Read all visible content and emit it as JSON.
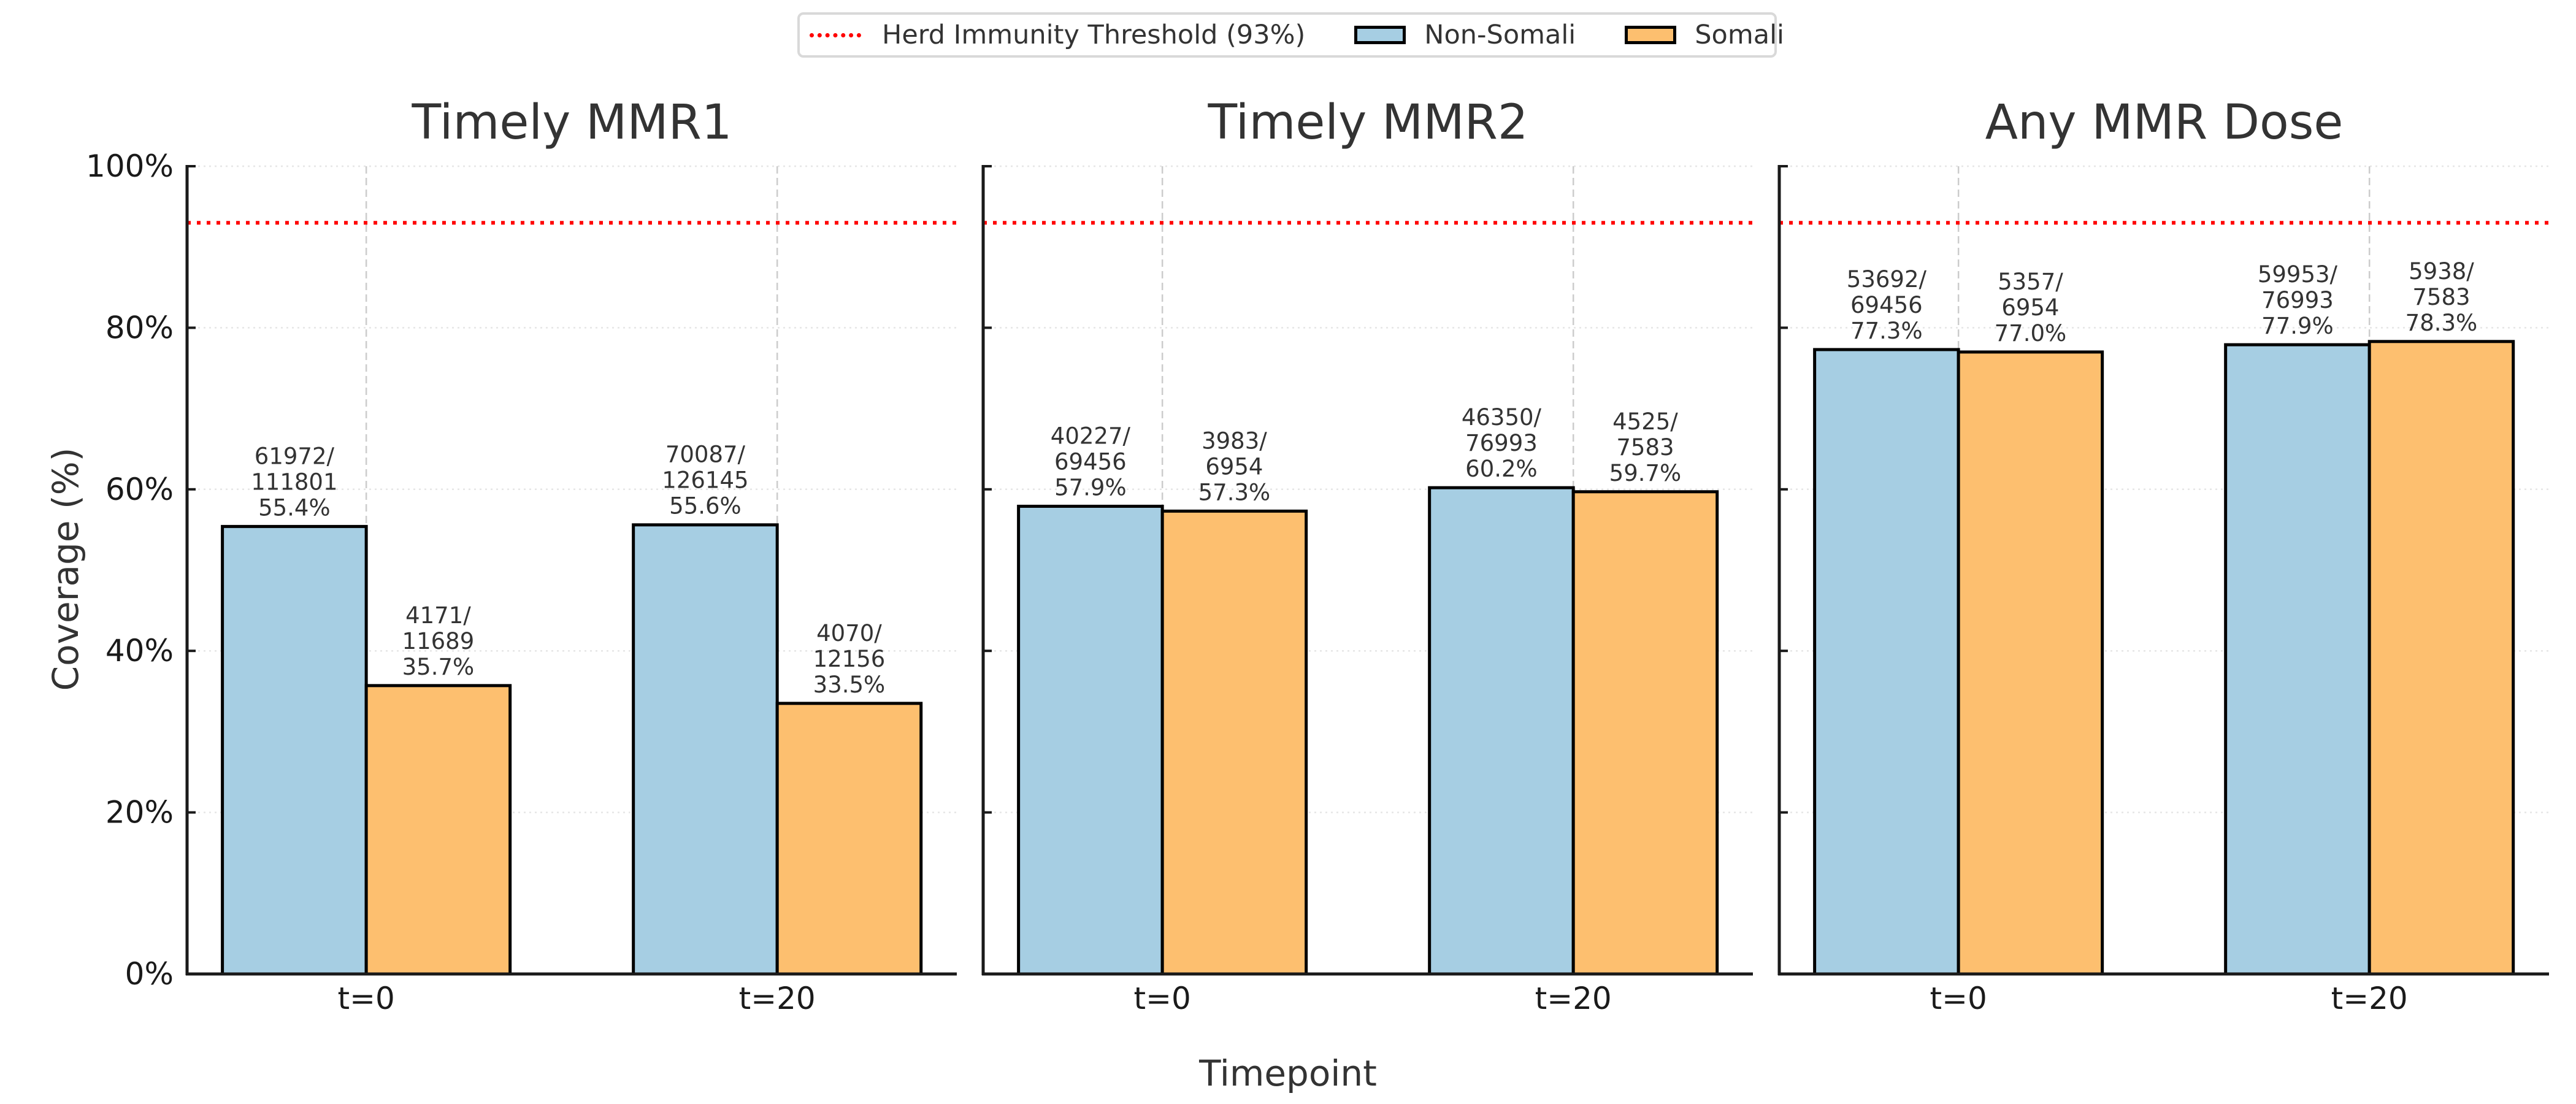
{
  "legend": {
    "items": [
      {
        "label": "Herd Immunity Threshold (93%)",
        "kind": "line",
        "color": "#ff0000"
      },
      {
        "label": "Non-Somali",
        "kind": "patch",
        "color": "#a6cee3"
      },
      {
        "label": "Somali",
        "kind": "patch",
        "color": "#fdbf6f"
      }
    ]
  },
  "chart_data": {
    "type": "bar",
    "xlabel": "Timepoint",
    "ylabel": "Coverage (%)",
    "ylim": [
      0,
      100
    ],
    "yticks": [
      "0%",
      "20%",
      "40%",
      "60%",
      "80%",
      "100%"
    ],
    "ytick_values": [
      0,
      20,
      40,
      60,
      80,
      100
    ],
    "categories": [
      "t=0",
      "t=20"
    ],
    "threshold": {
      "label": "Herd Immunity Threshold (93%)",
      "value": 93,
      "color": "#ff0000"
    },
    "grid": true,
    "legend_position": "top-center",
    "colors": {
      "Non-Somali": "#a6cee3",
      "Somali": "#fdbf6f"
    },
    "panels": [
      {
        "title": "Timely MMR1",
        "series": [
          {
            "name": "Non-Somali",
            "values": [
              55.4,
              55.6
            ],
            "labels": [
              [
                "61972/",
                "111801",
                "55.4%"
              ],
              [
                "70087/",
                "126145",
                "55.6%"
              ]
            ]
          },
          {
            "name": "Somali",
            "values": [
              35.7,
              33.5
            ],
            "labels": [
              [
                "4171/",
                "11689",
                "35.7%"
              ],
              [
                "4070/",
                "12156",
                "33.5%"
              ]
            ]
          }
        ]
      },
      {
        "title": "Timely MMR2",
        "series": [
          {
            "name": "Non-Somali",
            "values": [
              57.9,
              60.2
            ],
            "labels": [
              [
                "40227/",
                "69456",
                "57.9%"
              ],
              [
                "46350/",
                "76993",
                "60.2%"
              ]
            ]
          },
          {
            "name": "Somali",
            "values": [
              57.3,
              59.7
            ],
            "labels": [
              [
                "3983/",
                "6954",
                "57.3%"
              ],
              [
                "4525/",
                "7583",
                "59.7%"
              ]
            ]
          }
        ]
      },
      {
        "title": "Any MMR Dose",
        "series": [
          {
            "name": "Non-Somali",
            "values": [
              77.3,
              77.9
            ],
            "labels": [
              [
                "53692/",
                "69456",
                "77.3%"
              ],
              [
                "59953/",
                "76993",
                "77.9%"
              ]
            ]
          },
          {
            "name": "Somali",
            "values": [
              77.0,
              78.3
            ],
            "labels": [
              [
                "5357/",
                "6954",
                "77.0%"
              ],
              [
                "5938/",
                "7583",
                "78.3%"
              ]
            ]
          }
        ]
      }
    ]
  }
}
